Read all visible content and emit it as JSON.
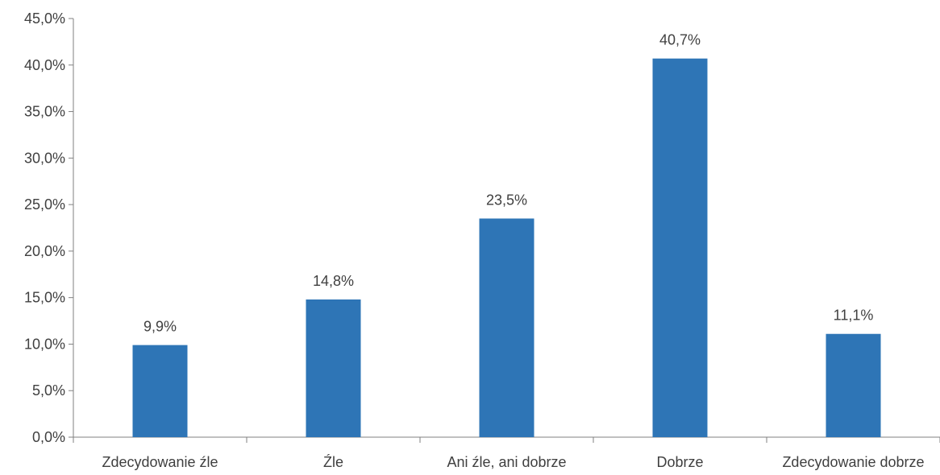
{
  "chart_data": {
    "type": "bar",
    "categories": [
      "Zdecydowanie źle",
      "Źle",
      "Ani źle, ani dobrze",
      "Dobrze",
      "Zdecydowanie dobrze"
    ],
    "values": [
      9.9,
      14.8,
      23.5,
      40.7,
      11.1
    ],
    "value_labels": [
      "9,9%",
      "14,8%",
      "23,5%",
      "40,7%",
      "11,1%"
    ],
    "ylim": [
      0,
      45
    ],
    "y_ticks": [
      0,
      5,
      10,
      15,
      20,
      25,
      30,
      35,
      40,
      45
    ],
    "y_tick_labels": [
      "0,0%",
      "5,0%",
      "10,0%",
      "15,0%",
      "20,0%",
      "25,0%",
      "30,0%",
      "35,0%",
      "40,0%",
      "45,0%"
    ],
    "grid": false,
    "legend": "none",
    "colors": {
      "bar": "#2E75B6",
      "axis": "#808080",
      "text": "#404040"
    }
  }
}
